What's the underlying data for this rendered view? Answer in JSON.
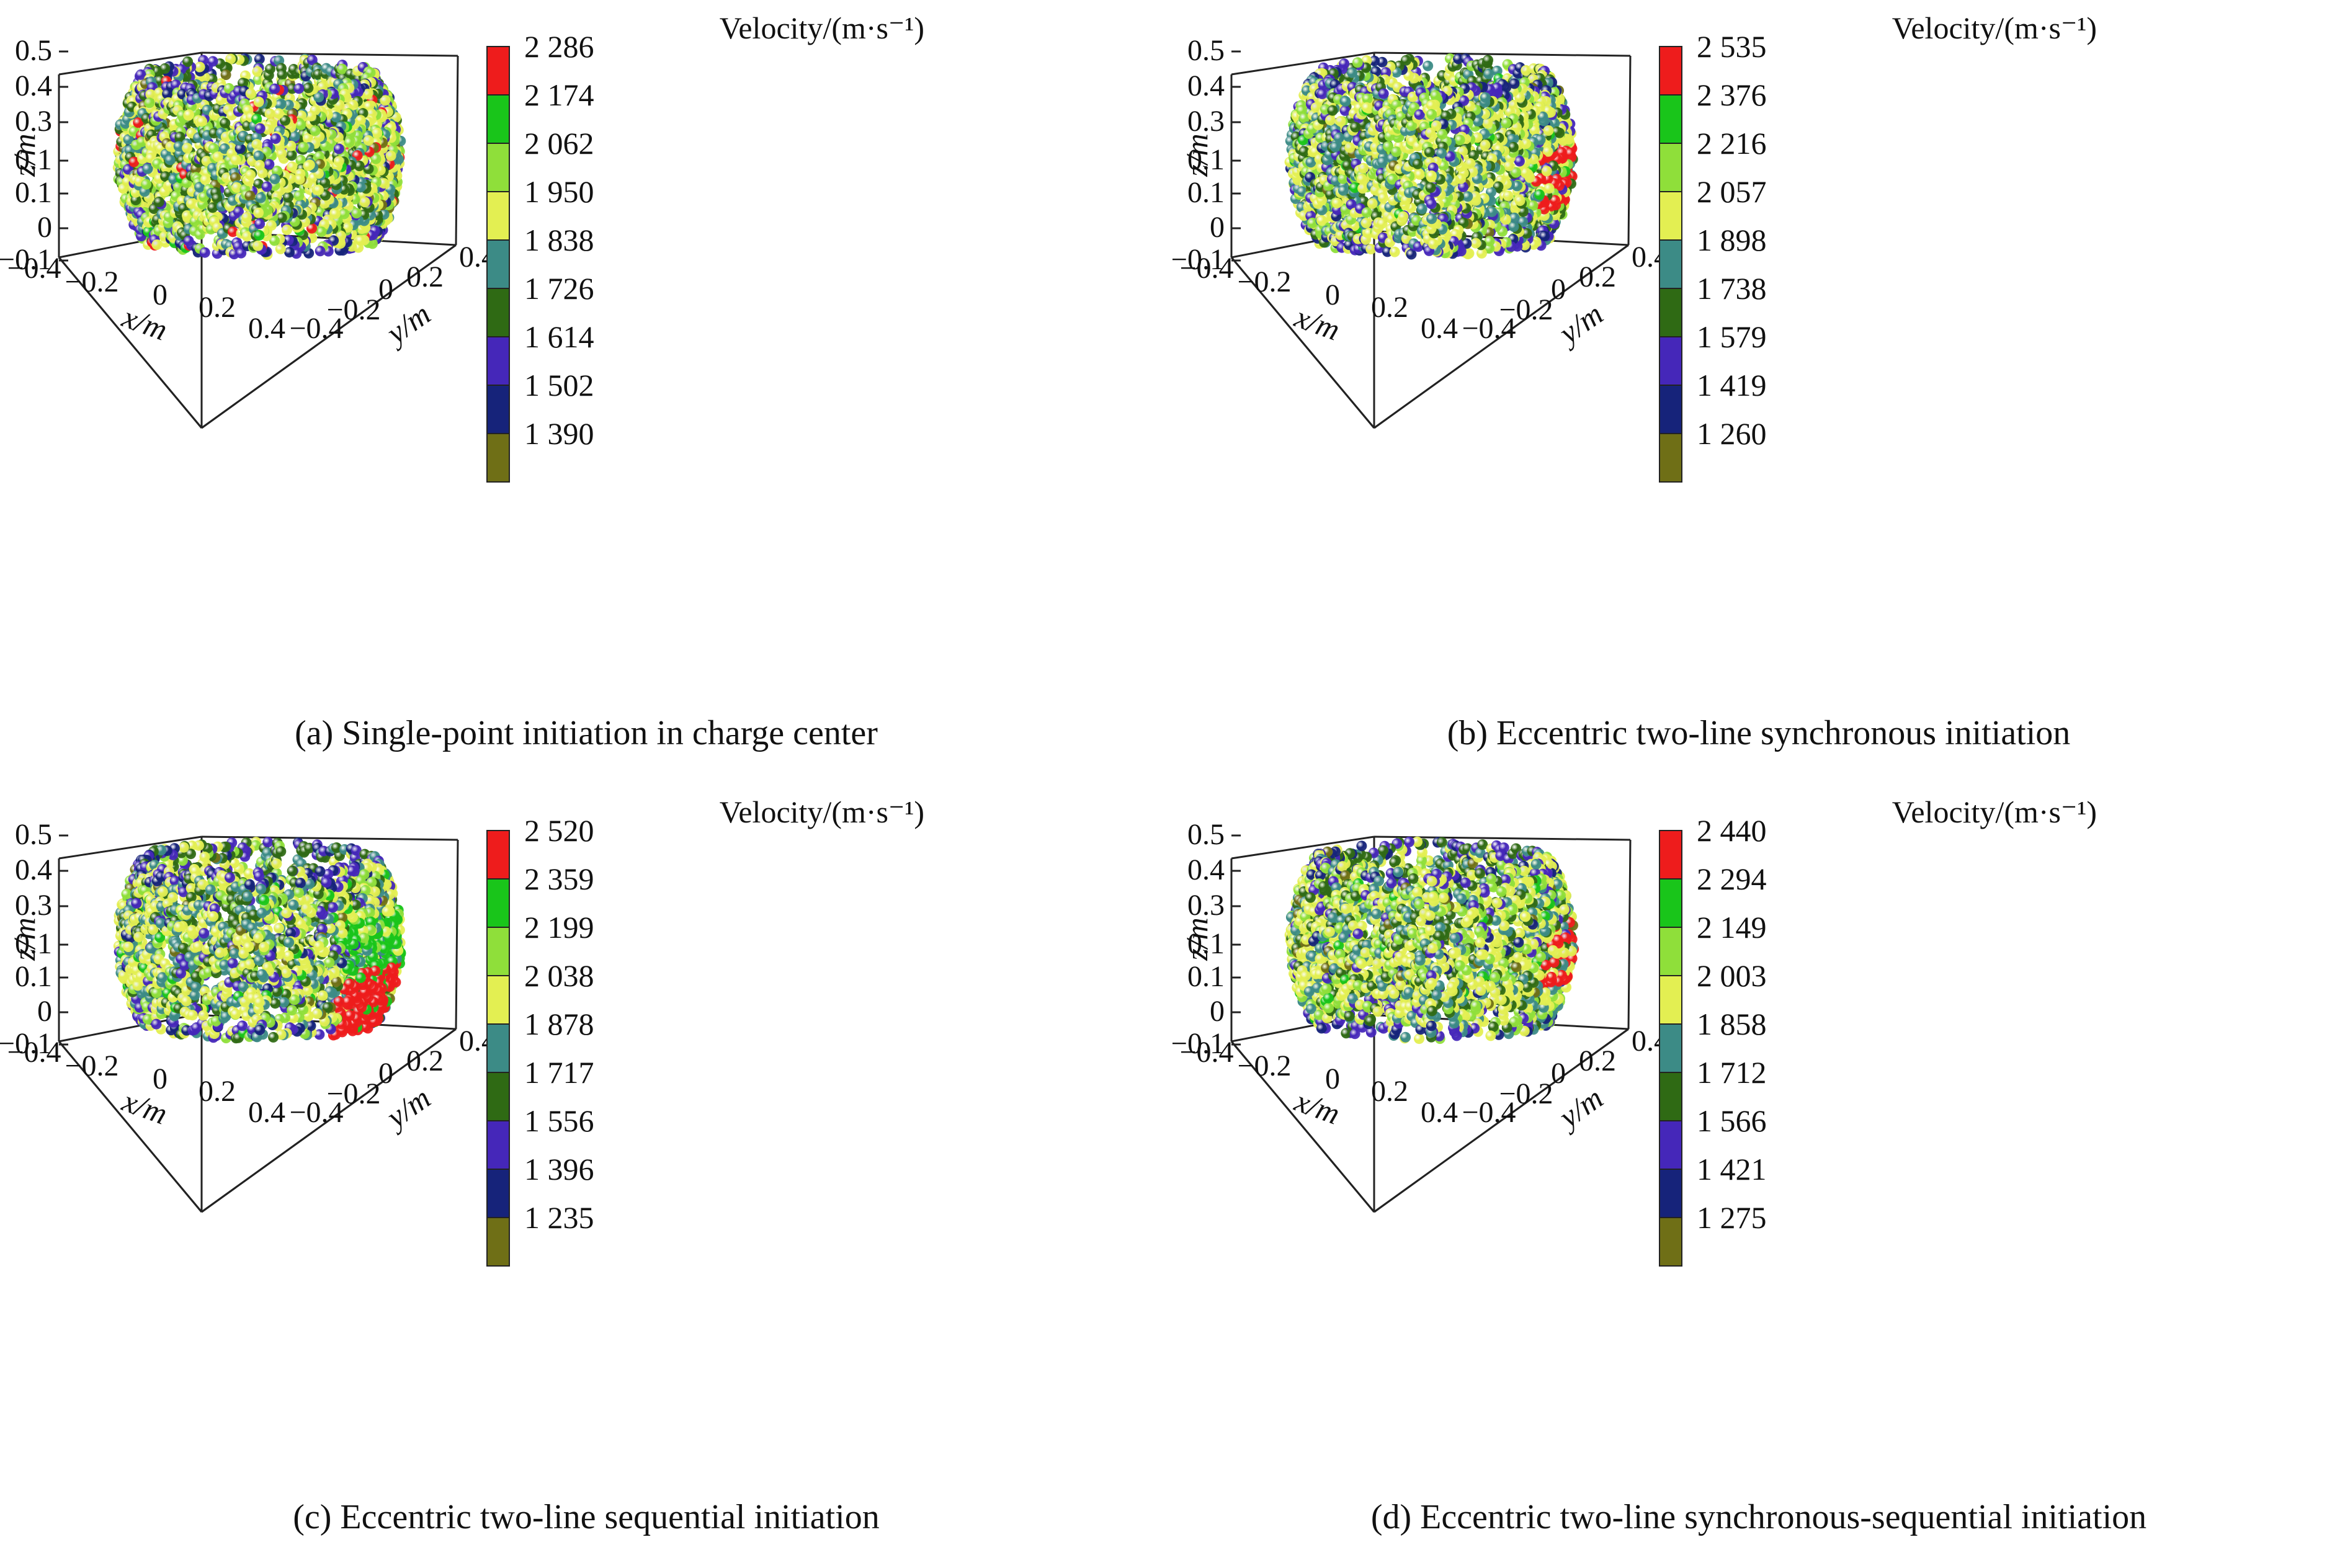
{
  "colorbar_title": "Velocity/(m·s⁻¹)",
  "color_scale": [
    "#ee1c1c",
    "#19c51a",
    "#8fdf3a",
    "#e3ef52",
    "#3c8b86",
    "#2f6a14",
    "#4527b9",
    "#16237a",
    "#6f6f16"
  ],
  "chart_data": [
    {
      "type": "scatter3d",
      "caption": "(a) Single-point initiation in charge center",
      "colorbar_ticks": [
        "2 286",
        "2 174",
        "2 062",
        "1 950",
        "1 838",
        "1 726",
        "1 614",
        "1 502",
        "1 390"
      ],
      "color_mix": [
        0.01,
        0.02,
        0.2,
        0.38,
        0.15,
        0.14,
        0.06,
        0.02,
        0.02
      ],
      "hotspot": "scattered",
      "xlabel": "x/m",
      "ylabel": "y/m",
      "zlabel": "z/m",
      "x_ticks": [
        "−0.4",
        "−0.2",
        "0",
        "0.2",
        "0.4"
      ],
      "y_ticks": [
        "−0.4",
        "−0.2",
        "0",
        "0.2",
        "0.4"
      ],
      "z_ticks": [
        "0.5",
        "0.4",
        "0.3",
        "0.1",
        "0.1",
        "0",
        "−0.1"
      ]
    },
    {
      "type": "scatter3d",
      "caption": "(b) Eccentric two-line synchronous initiation",
      "colorbar_ticks": [
        "2 535",
        "2 376",
        "2 216",
        "2 057",
        "1 898",
        "1 738",
        "1 579",
        "1 419",
        "1 260"
      ],
      "color_mix": [
        0.0,
        0.02,
        0.16,
        0.38,
        0.2,
        0.14,
        0.06,
        0.02,
        0.02
      ],
      "hotspot": "right-bands",
      "xlabel": "x/m",
      "ylabel": "y/m",
      "zlabel": "z/m",
      "x_ticks": [
        "−0.4",
        "−0.2",
        "0",
        "0.2",
        "0.4"
      ],
      "y_ticks": [
        "−0.4",
        "−0.2",
        "0",
        "0.2",
        "0.4"
      ],
      "z_ticks": [
        "0.5",
        "0.4",
        "0.3",
        "0.1",
        "0.1",
        "0",
        "−0.1"
      ]
    },
    {
      "type": "scatter3d",
      "caption": "(c) Eccentric two-line sequential initiation",
      "colorbar_ticks": [
        "2 520",
        "2 359",
        "2 199",
        "2 038",
        "1 878",
        "1 717",
        "1 556",
        "1 396",
        "1 235"
      ],
      "color_mix": [
        0.0,
        0.03,
        0.14,
        0.36,
        0.22,
        0.14,
        0.07,
        0.02,
        0.02
      ],
      "hotspot": "right-cluster",
      "xlabel": "x/m",
      "ylabel": "y/m",
      "zlabel": "z/m",
      "x_ticks": [
        "−0.4",
        "−0.2",
        "0",
        "0.2",
        "0.4"
      ],
      "y_ticks": [
        "−0.4",
        "−0.2",
        "0",
        "0.2",
        "0.4"
      ],
      "z_ticks": [
        "0.5",
        "0.4",
        "0.3",
        "0.1",
        "0.1",
        "0",
        "−0.1"
      ]
    },
    {
      "type": "scatter3d",
      "caption": "(d) Eccentric two-line synchronous-sequential initiation",
      "colorbar_ticks": [
        "2 440",
        "2 294",
        "2 149",
        "2 003",
        "1 858",
        "1 712",
        "1 566",
        "1 421",
        "1 275"
      ],
      "color_mix": [
        0.0,
        0.02,
        0.16,
        0.4,
        0.2,
        0.12,
        0.06,
        0.02,
        0.02
      ],
      "hotspot": "right-bands-thin",
      "xlabel": "x/m",
      "ylabel": "y/m",
      "zlabel": "z/m",
      "x_ticks": [
        "−0.4",
        "−0.2",
        "0",
        "0.2",
        "0.4"
      ],
      "y_ticks": [
        "−0.4",
        "−0.2",
        "0",
        "0.2",
        "0.4"
      ],
      "z_ticks": [
        "0.5",
        "0.4",
        "0.3",
        "0.1",
        "0.1",
        "0",
        "−0.1"
      ]
    }
  ]
}
